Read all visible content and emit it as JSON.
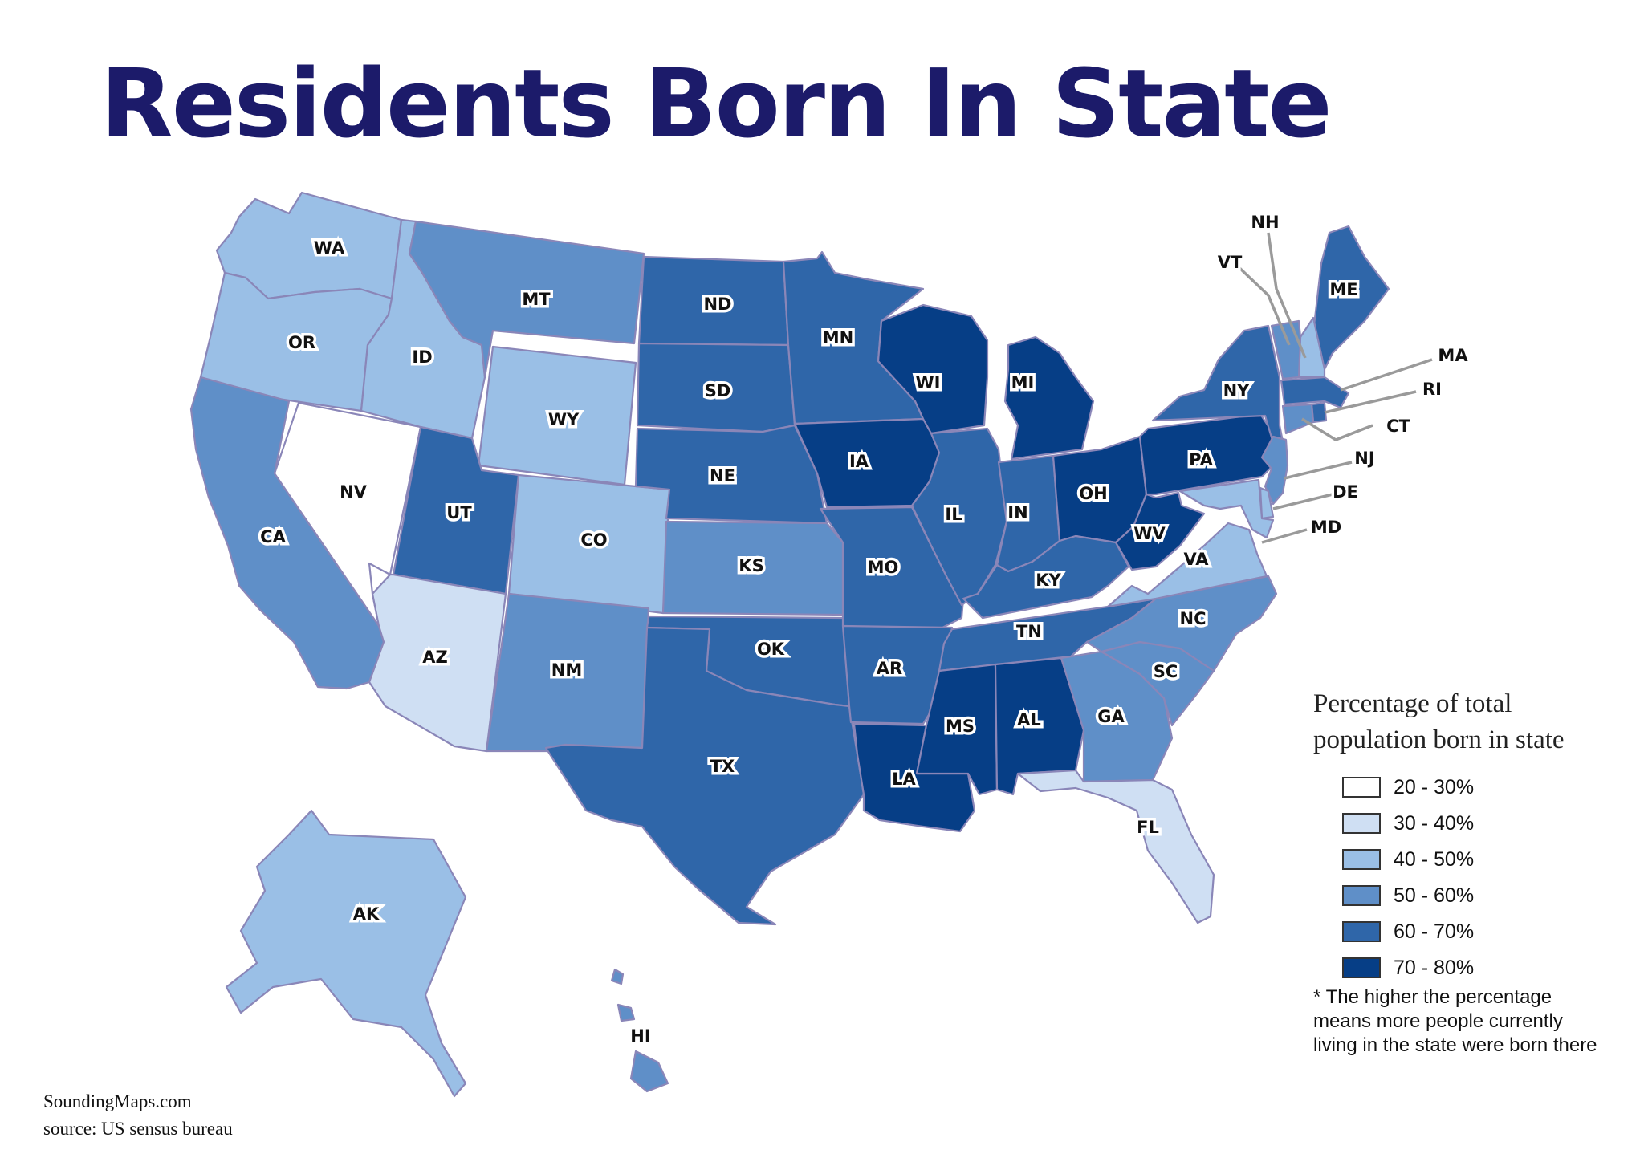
{
  "title": "Residents Born In State",
  "colors": {
    "20-30": "#ffffff",
    "30-40": "#cfdff3",
    "40-50": "#9abfe6",
    "50-60": "#5f8fc8",
    "60-70": "#2f66a9",
    "70-80": "#063e86",
    "border": "#8a86b8",
    "title": "#1c1b6a"
  },
  "legend": {
    "title": "Percentage of total population born in state",
    "items": [
      {
        "label": "20 - 30%",
        "color": "#ffffff"
      },
      {
        "label": "30 - 40%",
        "color": "#cfdff3"
      },
      {
        "label": "40 - 50%",
        "color": "#9abfe6"
      },
      {
        "label": "50 - 60%",
        "color": "#5f8fc8"
      },
      {
        "label": "60 - 70%",
        "color": "#2f66a9"
      },
      {
        "label": "70 - 80%",
        "color": "#063e86"
      }
    ]
  },
  "note": "* The higher the percentage means more people currently living in the state were born there",
  "credits": {
    "site": "SoundingMaps.com",
    "source": "source: US sensus bureau"
  },
  "states": {
    "WA": {
      "label": "WA",
      "bin": "40-50"
    },
    "OR": {
      "label": "OR",
      "bin": "40-50"
    },
    "CA": {
      "label": "CA",
      "bin": "50-60"
    },
    "NV": {
      "label": "NV",
      "bin": "20-30"
    },
    "ID": {
      "label": "ID",
      "bin": "40-50"
    },
    "MT": {
      "label": "MT",
      "bin": "50-60"
    },
    "WY": {
      "label": "WY",
      "bin": "40-50"
    },
    "UT": {
      "label": "UT",
      "bin": "60-70"
    },
    "AZ": {
      "label": "AZ",
      "bin": "30-40"
    },
    "CO": {
      "label": "CO",
      "bin": "40-50"
    },
    "NM": {
      "label": "NM",
      "bin": "50-60"
    },
    "ND": {
      "label": "ND",
      "bin": "60-70"
    },
    "SD": {
      "label": "SD",
      "bin": "60-70"
    },
    "NE": {
      "label": "NE",
      "bin": "60-70"
    },
    "KS": {
      "label": "KS",
      "bin": "50-60"
    },
    "OK": {
      "label": "OK",
      "bin": "60-70"
    },
    "TX": {
      "label": "TX",
      "bin": "60-70"
    },
    "MN": {
      "label": "MN",
      "bin": "60-70"
    },
    "IA": {
      "label": "IA",
      "bin": "70-80"
    },
    "MO": {
      "label": "MO",
      "bin": "60-70"
    },
    "AR": {
      "label": "AR",
      "bin": "60-70"
    },
    "LA": {
      "label": "LA",
      "bin": "70-80"
    },
    "WI": {
      "label": "WI",
      "bin": "70-80"
    },
    "IL": {
      "label": "IL",
      "bin": "60-70"
    },
    "MI": {
      "label": "MI",
      "bin": "70-80"
    },
    "IN": {
      "label": "IN",
      "bin": "60-70"
    },
    "OH": {
      "label": "OH",
      "bin": "70-80"
    },
    "KY": {
      "label": "KY",
      "bin": "60-70"
    },
    "TN": {
      "label": "TN",
      "bin": "60-70"
    },
    "MS": {
      "label": "MS",
      "bin": "70-80"
    },
    "AL": {
      "label": "AL",
      "bin": "70-80"
    },
    "GA": {
      "label": "GA",
      "bin": "50-60"
    },
    "FL": {
      "label": "FL",
      "bin": "30-40"
    },
    "SC": {
      "label": "SC",
      "bin": "50-60"
    },
    "NC": {
      "label": "NC",
      "bin": "50-60"
    },
    "VA": {
      "label": "VA",
      "bin": "40-50"
    },
    "WV": {
      "label": "WV",
      "bin": "70-80"
    },
    "PA": {
      "label": "PA",
      "bin": "70-80"
    },
    "NY": {
      "label": "NY",
      "bin": "60-70"
    },
    "ME": {
      "label": "ME",
      "bin": "60-70"
    },
    "NH": {
      "label": "NH",
      "bin": "40-50"
    },
    "VT": {
      "label": "VT",
      "bin": "50-60"
    },
    "MA": {
      "label": "MA",
      "bin": "60-70"
    },
    "RI": {
      "label": "RI",
      "bin": "60-70"
    },
    "CT": {
      "label": "CT",
      "bin": "50-60"
    },
    "NJ": {
      "label": "NJ",
      "bin": "50-60"
    },
    "DE": {
      "label": "DE",
      "bin": "40-50"
    },
    "MD": {
      "label": "MD",
      "bin": "40-50"
    },
    "AK": {
      "label": "AK",
      "bin": "40-50"
    },
    "HI": {
      "label": "HI",
      "bin": "50-60"
    }
  }
}
